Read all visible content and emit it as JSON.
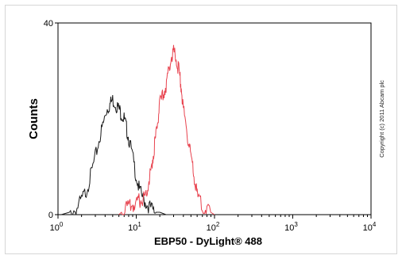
{
  "chart_data": {
    "type": "line",
    "title": "",
    "xlabel": "EBP50 - DyLight® 488",
    "ylabel": "Counts",
    "xscale": "log",
    "xlim": [
      1,
      10000
    ],
    "ylim": [
      0,
      40
    ],
    "y_ticks": [
      "0",
      "40"
    ],
    "x_ticks": [
      {
        "base": "10",
        "exp": "0"
      },
      {
        "base": "10",
        "exp": "1"
      },
      {
        "base": "10",
        "exp": "2"
      },
      {
        "base": "10",
        "exp": "3"
      },
      {
        "base": "10",
        "exp": "4"
      }
    ],
    "copyright": "Copyright (c) 2011 Abcam plc",
    "series": [
      {
        "color": "#1a1a1a",
        "x": [
          1.1,
          1.4,
          1.7,
          2.0,
          2.3,
          2.6,
          3.0,
          3.4,
          3.8,
          4.2,
          4.6,
          5.0,
          5.5,
          6.0,
          6.5,
          7.0,
          7.5,
          8.0,
          9.0,
          10,
          11,
          12.5,
          14,
          16,
          18,
          20,
          24,
          30,
          40
        ],
        "y": [
          0,
          0.5,
          1,
          3,
          5,
          8,
          12,
          16,
          19,
          22,
          23,
          24,
          23,
          22,
          21,
          20,
          18,
          16,
          12,
          8,
          5,
          3,
          2,
          1,
          0.5,
          0.5,
          0,
          0,
          0
        ]
      },
      {
        "color": "#e8434f",
        "x": [
          6,
          7,
          8,
          9,
          10,
          11,
          12,
          13,
          14,
          15,
          16,
          17,
          18,
          19,
          20,
          22,
          24,
          26,
          28,
          30,
          32,
          34,
          36,
          38,
          40,
          44,
          48,
          52,
          56,
          60,
          70,
          80,
          100
        ],
        "y": [
          0,
          1,
          1.5,
          2,
          2,
          3,
          3,
          4,
          6,
          8,
          11,
          14,
          17,
          20,
          23,
          25,
          27,
          30,
          33,
          34,
          33,
          31,
          29,
          26,
          22,
          18,
          14,
          10,
          7,
          4,
          2,
          1,
          0
        ]
      }
    ]
  }
}
